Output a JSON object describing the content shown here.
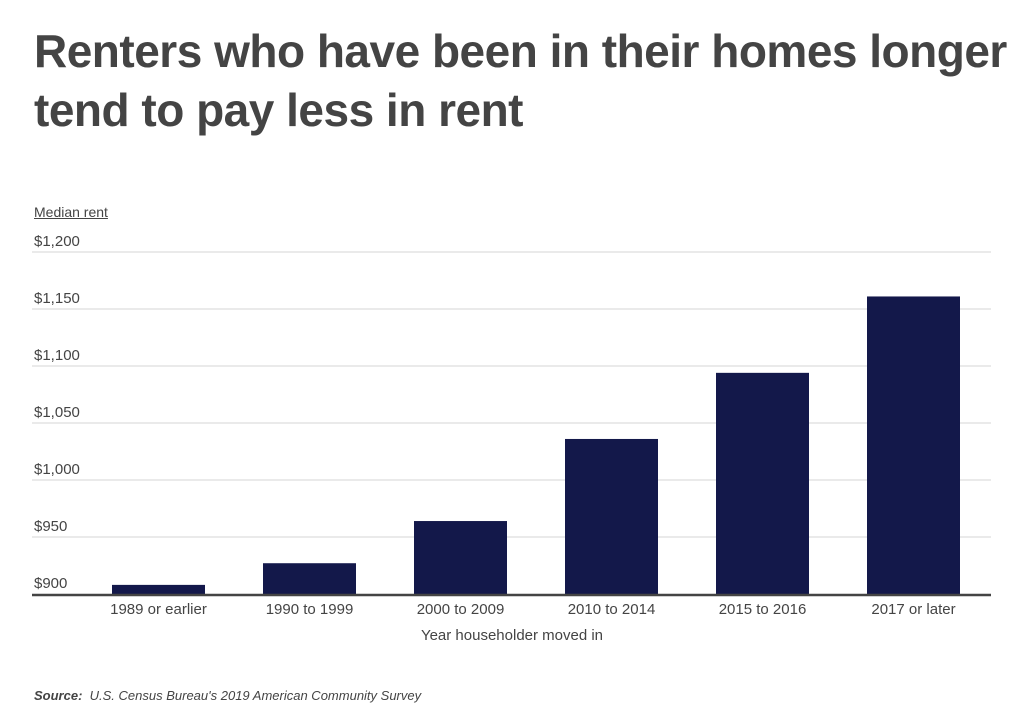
{
  "title": "Renters who have been in their homes longer tend to pay less in rent",
  "source_label": "Source:",
  "source_text": "U.S. Census Bureau's 2019 American Community Survey",
  "chart_data": {
    "type": "bar",
    "title": "Renters who have been in their homes longer tend to pay less in rent",
    "xlabel": "Year householder moved in",
    "ylabel": "Median rent",
    "categories": [
      "1989 or earlier",
      "1990 to 1999",
      "2000 to 2009",
      "2010 to 2014",
      "2015 to 2016",
      "2017 or later"
    ],
    "values": [
      908,
      927,
      964,
      1036,
      1094,
      1161
    ],
    "ylim": [
      900,
      1200
    ],
    "yticks": [
      900,
      950,
      1000,
      1050,
      1100,
      1150,
      1200
    ],
    "ytick_labels": [
      "$900",
      "$950",
      "$1,000",
      "$1,050",
      "$1,100",
      "$1,150",
      "$1,200"
    ],
    "grid": true,
    "bar_color": "#13184a"
  }
}
